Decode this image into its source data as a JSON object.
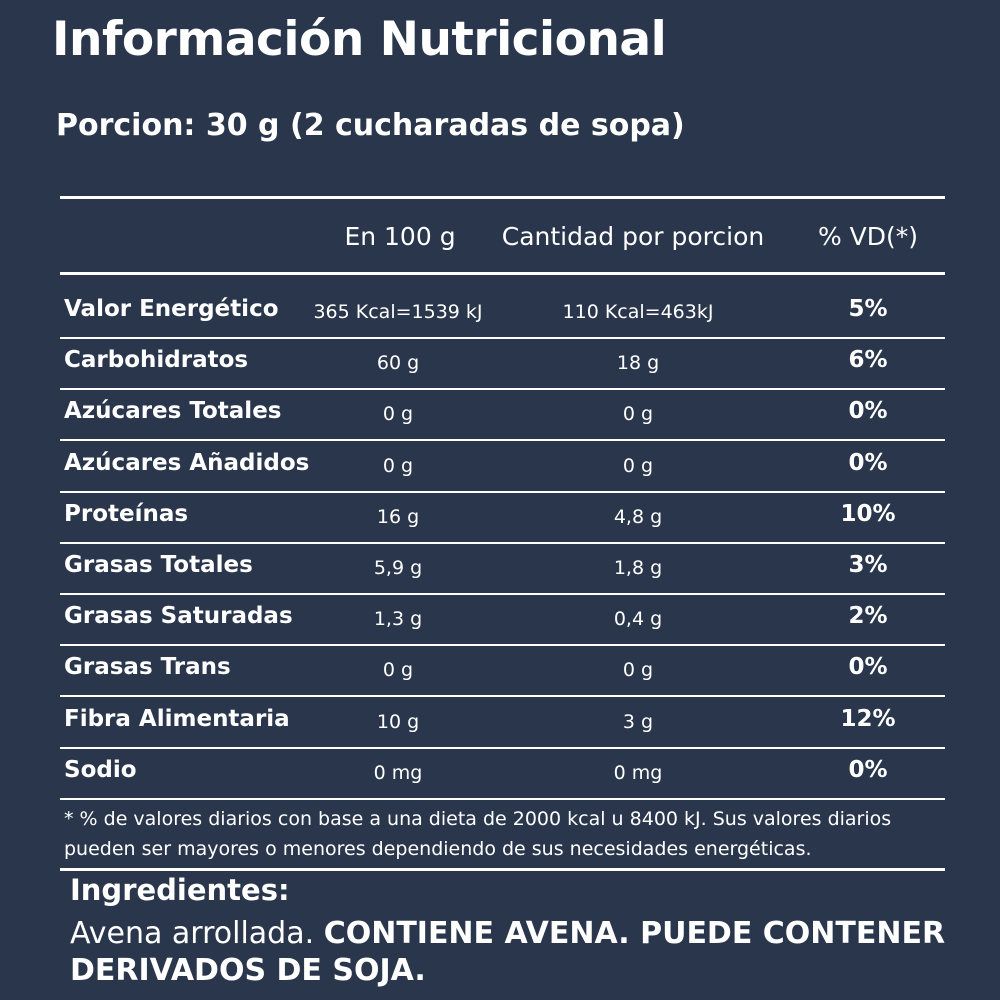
{
  "title": "Información Nutricional",
  "portion": "Porcion: 30 g (2 cucharadas de sopa)",
  "headers": {
    "per100": "En 100 g",
    "perPortion": "Cantidad por porcion",
    "dv": "% VD(*)"
  },
  "rows": [
    {
      "name": "Valor Energético",
      "per100": "365 Kcal=1539 kJ",
      "perPortion": "110 Kcal=463kJ",
      "dv": "5%"
    },
    {
      "name": "Carbohidratos",
      "per100": "60 g",
      "perPortion": "18 g",
      "dv": "6%"
    },
    {
      "name": "Azúcares Totales",
      "per100": "0 g",
      "perPortion": "0 g",
      "dv": "0%"
    },
    {
      "name": "Azúcares Añadidos",
      "per100": "0 g",
      "perPortion": "0 g",
      "dv": "0%"
    },
    {
      "name": "Proteínas",
      "per100": "16 g",
      "perPortion": "4,8 g",
      "dv": "10%"
    },
    {
      "name": "Grasas Totales",
      "per100": "5,9 g",
      "perPortion": "1,8 g",
      "dv": "3%"
    },
    {
      "name": "Grasas Saturadas",
      "per100": "1,3 g",
      "perPortion": "0,4 g",
      "dv": "2%"
    },
    {
      "name": "Grasas Trans",
      "per100": "0 g",
      "perPortion": "0 g",
      "dv": "0%"
    },
    {
      "name": "Fibra Alimentaria",
      "per100": "10 g",
      "perPortion": "3 g",
      "dv": "12%"
    },
    {
      "name": "Sodio",
      "per100": "0 mg",
      "perPortion": "0 mg",
      "dv": "0%"
    }
  ],
  "footnote": "* % de valores diarios con base a una dieta de 2000 kcal u 8400 kJ. Sus valores diarios pueden ser mayores o menores dependiendo de sus necesidades energéticas.",
  "ingredients": {
    "title": "Ingredientes:",
    "plain": "Avena arrollada. ",
    "bold": "CONTIENE AVENA. PUEDE CONTENER DERIVADOS DE SOJA."
  },
  "colors": {
    "background": "#2a364b",
    "text": "#ffffff"
  }
}
